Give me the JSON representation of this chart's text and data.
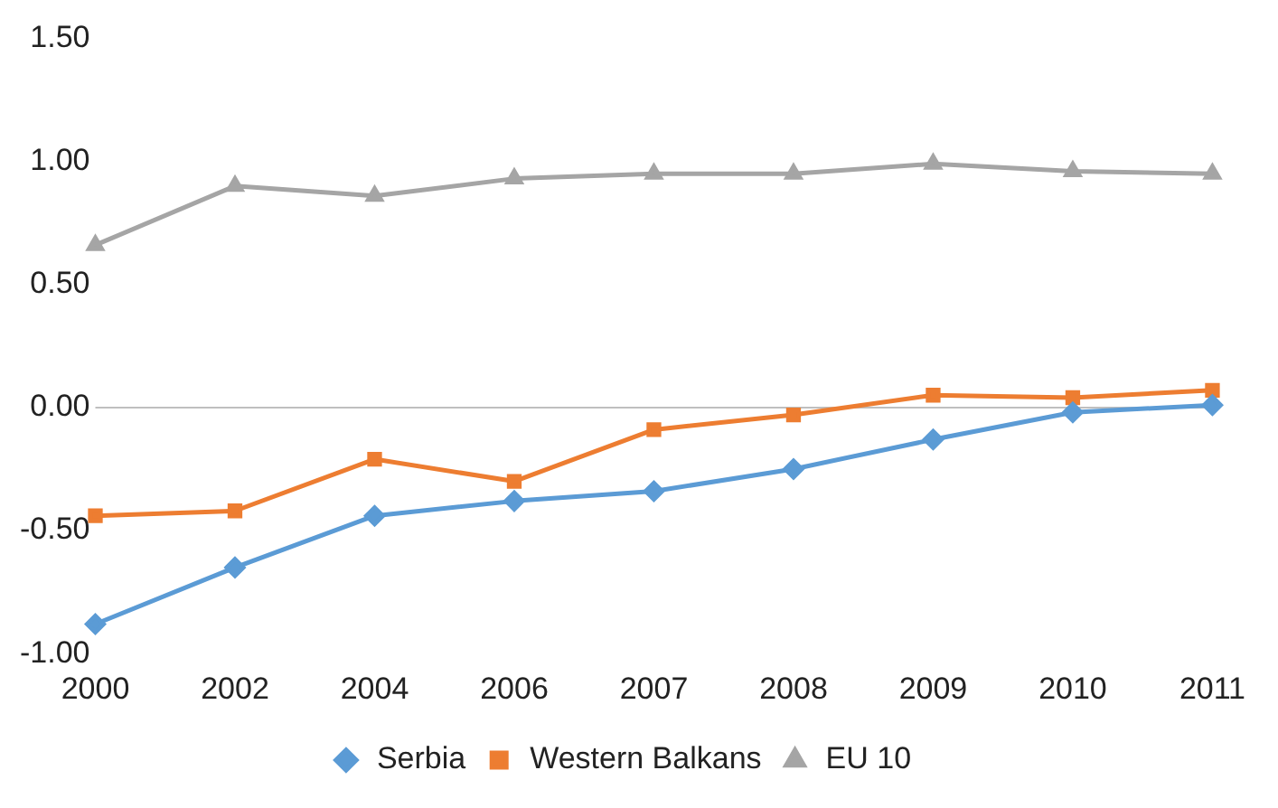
{
  "chart_data": {
    "type": "line",
    "categories": [
      "2000",
      "2002",
      "2004",
      "2006",
      "2007",
      "2008",
      "2009",
      "2010",
      "2011"
    ],
    "series": [
      {
        "name": "Serbia",
        "color": "#5b9bd5",
        "marker": "diamond",
        "values": [
          -0.88,
          -0.65,
          -0.44,
          -0.38,
          -0.34,
          -0.25,
          -0.13,
          -0.02,
          0.01
        ]
      },
      {
        "name": "Western Balkans",
        "color": "#ed7d31",
        "marker": "square",
        "values": [
          -0.44,
          -0.42,
          -0.21,
          -0.3,
          -0.09,
          -0.03,
          0.05,
          0.04,
          0.07
        ]
      },
      {
        "name": "EU 10",
        "color": "#a5a5a5",
        "marker": "triangle",
        "values": [
          0.66,
          0.9,
          0.86,
          0.93,
          0.95,
          0.95,
          0.99,
          0.96,
          0.95
        ]
      }
    ],
    "ylim": [
      -1,
      1.5
    ],
    "yticks": [
      {
        "value": -1,
        "label": "-1.00"
      },
      {
        "value": -0.5,
        "label": "-0.50"
      },
      {
        "value": 0,
        "label": "0.00"
      },
      {
        "value": 0.5,
        "label": "0.50"
      },
      {
        "value": 1,
        "label": "1.00"
      },
      {
        "value": 1.5,
        "label": "1.50"
      }
    ],
    "ref_lines": [
      {
        "axis": "y",
        "value": 0,
        "color": "#bfbfbf"
      }
    ],
    "grid": false,
    "legend": "bottom"
  }
}
